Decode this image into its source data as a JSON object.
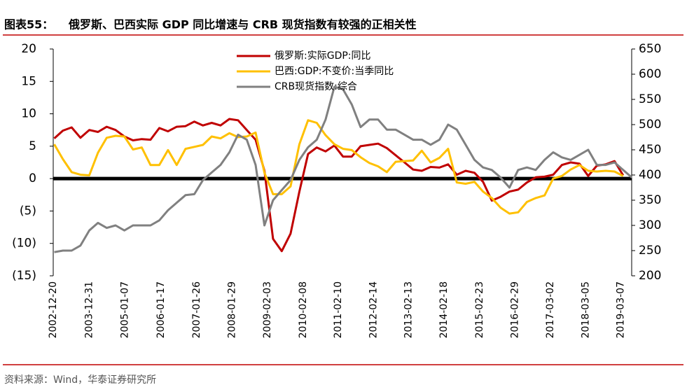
{
  "chart_data": {
    "type": "line",
    "title_prefix": "图表55：",
    "title": "俄罗斯、巴西实际 GDP 同比增速与 CRB 现货指数有较强的正相关性",
    "source": "资料来源：Wind，华泰证券研究所",
    "x": [
      "2002-12-31",
      "2003-03-31",
      "2003-06-30",
      "2003-09-30",
      "2003-12-31",
      "2004-03-31",
      "2004-06-30",
      "2004-09-30",
      "2004-12-31",
      "2005-03-31",
      "2005-06-30",
      "2005-09-30",
      "2005-12-31",
      "2006-03-31",
      "2006-06-30",
      "2006-09-30",
      "2006-12-31",
      "2007-03-31",
      "2007-06-30",
      "2007-09-30",
      "2007-12-31",
      "2008-03-31",
      "2008-06-30",
      "2008-09-30",
      "2008-12-31",
      "2009-03-31",
      "2009-06-30",
      "2009-09-30",
      "2009-12-31",
      "2010-03-31",
      "2010-06-30",
      "2010-09-30",
      "2010-12-31",
      "2011-03-31",
      "2011-06-30",
      "2011-09-30",
      "2011-12-31",
      "2012-03-31",
      "2012-06-30",
      "2012-09-30",
      "2012-12-31",
      "2013-03-31",
      "2013-06-30",
      "2013-09-30",
      "2013-12-31",
      "2014-03-31",
      "2014-06-30",
      "2014-09-30",
      "2014-12-31",
      "2015-03-31",
      "2015-06-30",
      "2015-09-30",
      "2015-12-31",
      "2016-03-31",
      "2016-06-30",
      "2016-09-30",
      "2016-12-31",
      "2017-03-31",
      "2017-06-30",
      "2017-09-30",
      "2017-12-31",
      "2018-03-31",
      "2018-06-30",
      "2018-09-30",
      "2018-12-31",
      "2019-03-31",
      "2019-06-30"
    ],
    "xlim": [
      "2002-12-20",
      "2019-06-28"
    ],
    "xticks": [
      "2002-12-20",
      "2003-12-31",
      "2005-01-07",
      "2006-01-17",
      "2007-01-26",
      "2008-01-29",
      "2009-02-03",
      "2010-02-08",
      "2011-02-10",
      "2012-02-14",
      "2013-02-13",
      "2014-02-18",
      "2015-02-23",
      "2016-02-29",
      "2017-03-02",
      "2018-03-05",
      "2019-03-07"
    ],
    "ylim": [
      -15,
      20
    ],
    "yticks": [
      20,
      15,
      10,
      5,
      0,
      {
        "value": -5,
        "label": "(5)"
      },
      {
        "value": -10,
        "label": "(10)"
      },
      {
        "value": -15,
        "label": "(15)"
      }
    ],
    "y2lim": [
      200,
      650
    ],
    "y2ticks": [
      650,
      600,
      550,
      500,
      450,
      400,
      350,
      300,
      250,
      200
    ],
    "zero_line": true,
    "legend": "upper center",
    "series": [
      {
        "name": "俄罗斯:实际GDP:同比",
        "color": "#c00000",
        "values": [
          6.2,
          7.4,
          7.9,
          6.3,
          7.5,
          7.2,
          8.0,
          7.5,
          6.5,
          5.9,
          6.1,
          6.0,
          7.8,
          7.3,
          8.0,
          8.1,
          8.8,
          8.2,
          8.6,
          8.2,
          9.2,
          9.0,
          7.5,
          6.0,
          1.2,
          -9.3,
          -11.2,
          -8.5,
          -2.0,
          3.8,
          4.8,
          4.2,
          5.1,
          3.4,
          3.4,
          5.0,
          5.2,
          5.4,
          4.7,
          3.6,
          2.5,
          1.4,
          1.2,
          1.8,
          1.7,
          2.2,
          0.6,
          1.2,
          0.9,
          -0.5,
          -3.4,
          -2.8,
          -2.0,
          -1.7,
          -0.6,
          0.2,
          0.3,
          0.6,
          2.1,
          2.5,
          2.3,
          0.4,
          2.0,
          2.2,
          2.7,
          0.5,
          null
        ]
      },
      {
        "name": "巴西:GDP:不变价:当季同比",
        "color": "#ffc000",
        "values": [
          5.3,
          3.0,
          1.0,
          0.6,
          0.5,
          4.0,
          6.3,
          6.6,
          6.5,
          4.5,
          4.8,
          2.1,
          2.1,
          4.4,
          2.1,
          4.6,
          4.9,
          5.2,
          6.5,
          6.2,
          7.0,
          6.4,
          6.5,
          7.1,
          0.9,
          -2.4,
          -2.4,
          -1.2,
          5.3,
          9.0,
          8.6,
          6.7,
          5.3,
          4.6,
          4.4,
          3.3,
          2.4,
          1.9,
          1.0,
          2.6,
          2.7,
          2.8,
          4.3,
          2.5,
          3.2,
          4.6,
          -0.6,
          -0.8,
          -0.5,
          -2.0,
          -3.0,
          -4.5,
          -5.4,
          -5.2,
          -3.6,
          -3.0,
          -2.6,
          0.0,
          0.4,
          1.4,
          2.1,
          1.2,
          1.1,
          1.2,
          1.1,
          0.4,
          null
        ]
      },
      {
        "name": "CRB现货指数:综合",
        "color": "#808080",
        "axis": "y2",
        "values": [
          247,
          250,
          250,
          260,
          290,
          305,
          295,
          300,
          290,
          300,
          300,
          300,
          310,
          330,
          345,
          360,
          362,
          390,
          405,
          420,
          445,
          480,
          470,
          420,
          300,
          350,
          370,
          390,
          430,
          455,
          470,
          510,
          575,
          570,
          540,
          495,
          510,
          510,
          490,
          490,
          480,
          470,
          470,
          460,
          470,
          500,
          490,
          460,
          430,
          415,
          410,
          395,
          375,
          410,
          415,
          410,
          430,
          445,
          435,
          430,
          440,
          450,
          420,
          420,
          425,
          410,
          395
        ]
      }
    ]
  }
}
